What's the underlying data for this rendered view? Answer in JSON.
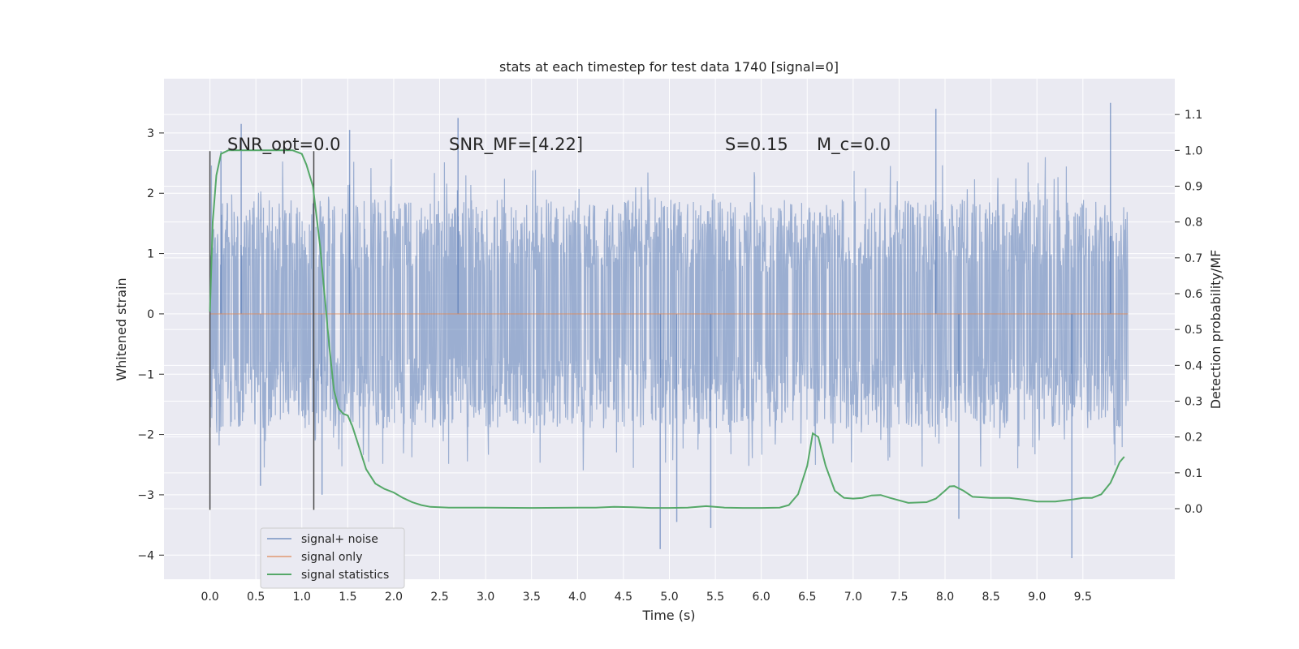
{
  "chart_data": {
    "type": "line",
    "title": "stats at each timestep for test data 1740 [signal=0]",
    "xlabel": "Time (s)",
    "ylabel": "Whitened strain",
    "y2label": "Detection probability/MF",
    "xlim": [
      -0.5,
      10.5
    ],
    "ylim": [
      -4.4,
      3.9
    ],
    "y2lim": [
      -0.197,
      1.2
    ],
    "x_ticks": [
      0.0,
      0.5,
      1.0,
      1.5,
      2.0,
      2.5,
      3.0,
      3.5,
      4.0,
      4.5,
      5.0,
      5.5,
      6.0,
      6.5,
      7.0,
      7.5,
      8.0,
      8.5,
      9.0,
      9.5
    ],
    "x_tick_labels": [
      "0.0",
      "0.5",
      "1.0",
      "1.5",
      "2.0",
      "2.5",
      "3.0",
      "3.5",
      "4.0",
      "4.5",
      "5.0",
      "5.5",
      "6.0",
      "6.5",
      "7.0",
      "7.5",
      "8.0",
      "8.5",
      "9.0",
      "9.5"
    ],
    "y_ticks": [
      -4,
      -3,
      -2,
      -1,
      0,
      1,
      2,
      3
    ],
    "y_tick_labels": [
      "−4",
      "−3",
      "−2",
      "−1",
      "0",
      "1",
      "2",
      "3"
    ],
    "y2_ticks": [
      0.0,
      0.1,
      0.2,
      0.3,
      0.4,
      0.5,
      0.6,
      0.7,
      0.8,
      0.9,
      1.0,
      1.1
    ],
    "y2_tick_labels": [
      "0.0",
      "0.1",
      "0.2",
      "0.3",
      "0.4",
      "0.5",
      "0.6",
      "0.7",
      "0.8",
      "0.9",
      "1.0",
      "1.1"
    ],
    "grid": true,
    "legend_position": "lower-left",
    "annotations": [
      {
        "text": "SNR_opt=0.0",
        "x": 0.2,
        "y": 2.7
      },
      {
        "text": "SNR_MF=[4.22]",
        "x": 2.6,
        "y": 2.7
      },
      {
        "text": "S=0.15",
        "x": 5.6,
        "y": 2.7
      },
      {
        "text": "M_c=0.0",
        "x": 6.6,
        "y": 2.7
      }
    ],
    "vlines": [
      {
        "x": 0.0,
        "y0": -3.25,
        "y1": 2.7
      },
      {
        "x": 1.13,
        "y0": -3.25,
        "y1": 2.7
      }
    ],
    "series": [
      {
        "name": "signal+ noise",
        "color": "#4c72b0",
        "axis": "left",
        "kind": "noise",
        "range": [
          0.0,
          9.99
        ],
        "band_low": -1.3,
        "band_high": 1.3,
        "spikes": [
          {
            "x": 0.34,
            "y": 3.15
          },
          {
            "x": 1.52,
            "y": 3.05
          },
          {
            "x": 2.7,
            "y": 3.25
          },
          {
            "x": 7.9,
            "y": 3.4
          },
          {
            "x": 9.8,
            "y": 3.5
          },
          {
            "x": 0.12,
            "y": 2.7
          },
          {
            "x": 4.9,
            "y": -3.9
          },
          {
            "x": 5.08,
            "y": -3.45
          },
          {
            "x": 5.45,
            "y": -3.55
          },
          {
            "x": 9.38,
            "y": -4.05
          },
          {
            "x": 8.15,
            "y": -3.4
          },
          {
            "x": 1.22,
            "y": -3.0
          },
          {
            "x": 0.55,
            "y": -2.85
          }
        ]
      },
      {
        "name": "signal only",
        "color": "#dd8452",
        "axis": "left",
        "x": [
          0.0,
          9.99
        ],
        "y": [
          0.0,
          0.0
        ]
      },
      {
        "name": "signal statistics",
        "color": "#55a868",
        "axis": "right",
        "x": [
          0.0,
          0.03,
          0.07,
          0.12,
          0.2,
          0.3,
          0.5,
          0.7,
          0.9,
          1.0,
          1.05,
          1.12,
          1.2,
          1.3,
          1.35,
          1.4,
          1.45,
          1.5,
          1.55,
          1.6,
          1.7,
          1.8,
          1.9,
          2.0,
          2.1,
          2.2,
          2.3,
          2.4,
          2.6,
          2.8,
          3.0,
          3.5,
          4.0,
          4.2,
          4.4,
          4.6,
          4.8,
          5.0,
          5.2,
          5.4,
          5.6,
          5.8,
          6.0,
          6.2,
          6.3,
          6.4,
          6.5,
          6.56,
          6.62,
          6.7,
          6.8,
          6.9,
          7.0,
          7.1,
          7.2,
          7.3,
          7.4,
          7.6,
          7.8,
          7.9,
          8.0,
          8.05,
          8.1,
          8.2,
          8.3,
          8.5,
          8.7,
          8.9,
          9.0,
          9.2,
          9.4,
          9.5,
          9.6,
          9.7,
          9.8,
          9.85,
          9.9,
          9.95
        ],
        "y": [
          0.55,
          0.8,
          0.93,
          0.99,
          1.0,
          1.0,
          1.0,
          1.0,
          1.0,
          0.99,
          0.96,
          0.9,
          0.73,
          0.45,
          0.33,
          0.28,
          0.265,
          0.26,
          0.23,
          0.19,
          0.11,
          0.07,
          0.055,
          0.045,
          0.03,
          0.018,
          0.01,
          0.005,
          0.003,
          0.003,
          0.003,
          0.002,
          0.003,
          0.003,
          0.005,
          0.004,
          0.002,
          0.002,
          0.003,
          0.007,
          0.003,
          0.002,
          0.002,
          0.003,
          0.01,
          0.04,
          0.12,
          0.21,
          0.2,
          0.12,
          0.05,
          0.03,
          0.028,
          0.03,
          0.037,
          0.038,
          0.03,
          0.016,
          0.018,
          0.028,
          0.05,
          0.062,
          0.063,
          0.05,
          0.033,
          0.03,
          0.03,
          0.024,
          0.02,
          0.02,
          0.026,
          0.03,
          0.03,
          0.04,
          0.072,
          0.1,
          0.13,
          0.145
        ]
      }
    ]
  }
}
